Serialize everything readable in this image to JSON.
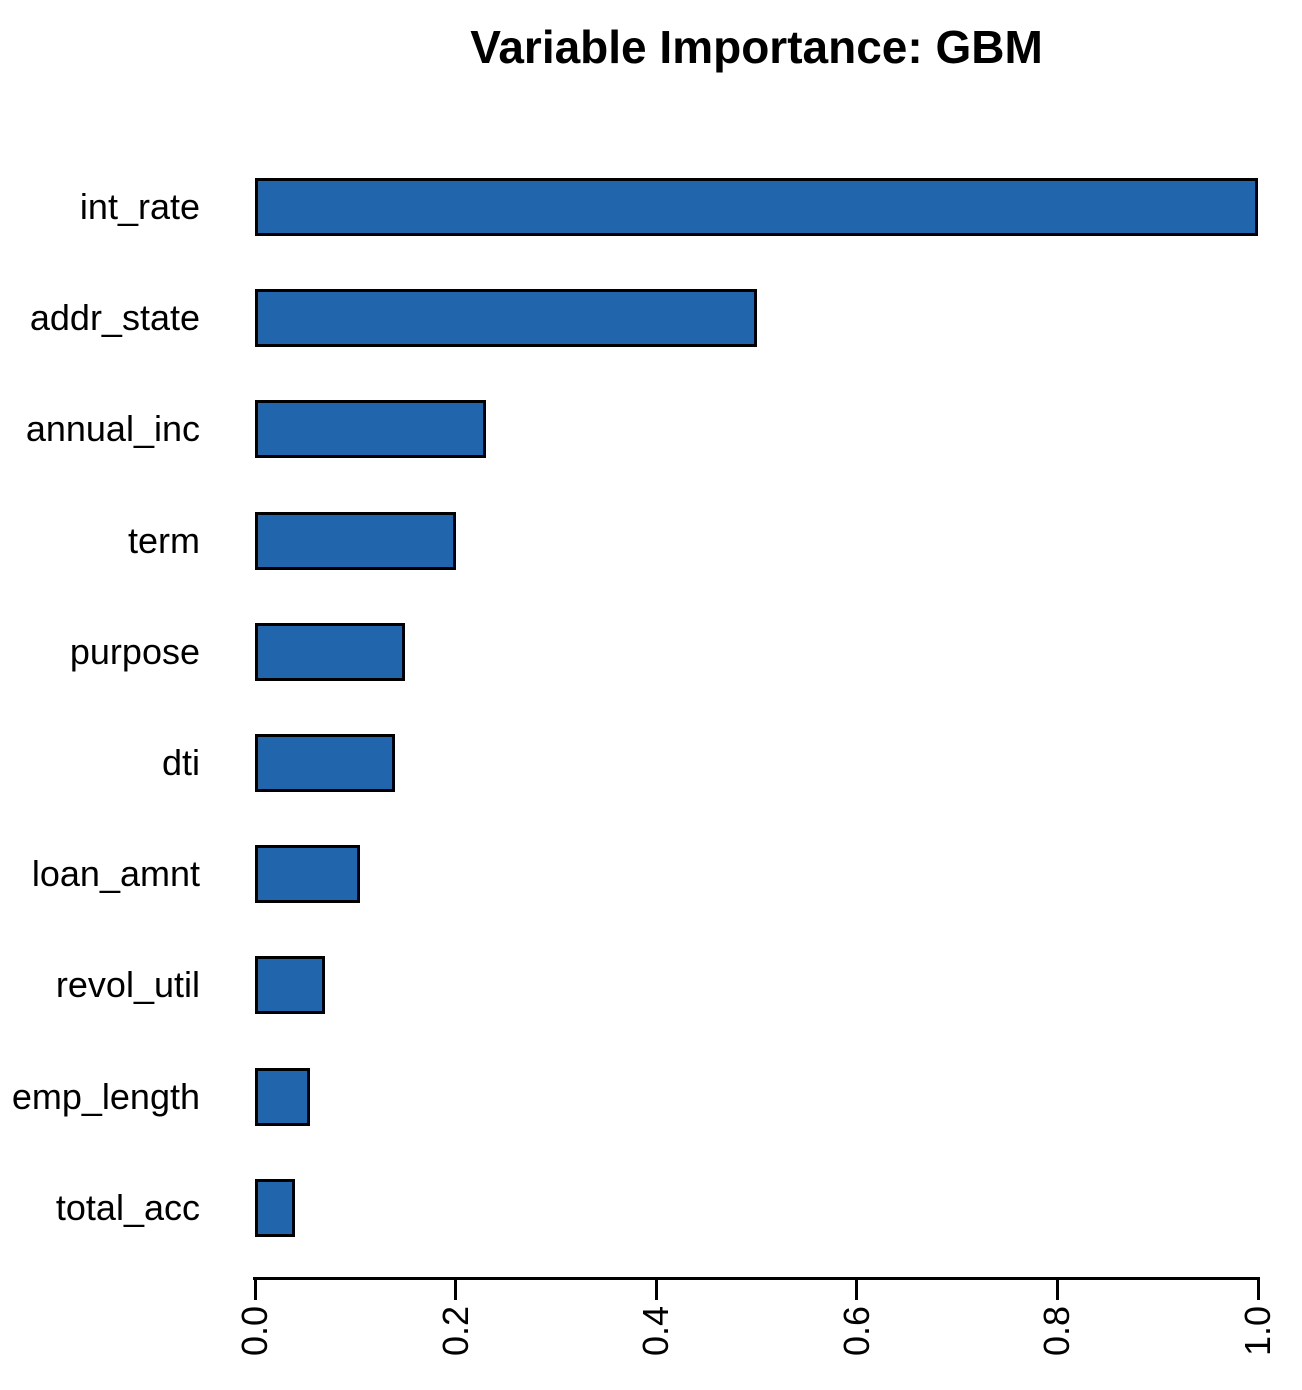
{
  "chart_data": {
    "type": "bar",
    "orientation": "horizontal",
    "title": "Variable Importance: GBM",
    "categories": [
      "int_rate",
      "addr_state",
      "annual_inc",
      "term",
      "purpose",
      "dti",
      "loan_amnt",
      "revol_util",
      "emp_length",
      "total_acc"
    ],
    "values": [
      1.0,
      0.5,
      0.23,
      0.2,
      0.15,
      0.14,
      0.105,
      0.07,
      0.055,
      0.04
    ],
    "xlabel": "",
    "ylabel": "",
    "xlim": [
      0.0,
      1.0
    ],
    "x_tick_labels": [
      "0.0",
      "0.2",
      "0.4",
      "0.6",
      "0.8",
      "1.0"
    ],
    "x_tick_values": [
      0.0,
      0.2,
      0.4,
      0.6,
      0.8,
      1.0
    ],
    "grid": false,
    "legend_position": "none",
    "bar_color": "#2166AC",
    "bar_border_color": "#000000",
    "background_color": "#ffffff",
    "text_color": "#000000"
  }
}
